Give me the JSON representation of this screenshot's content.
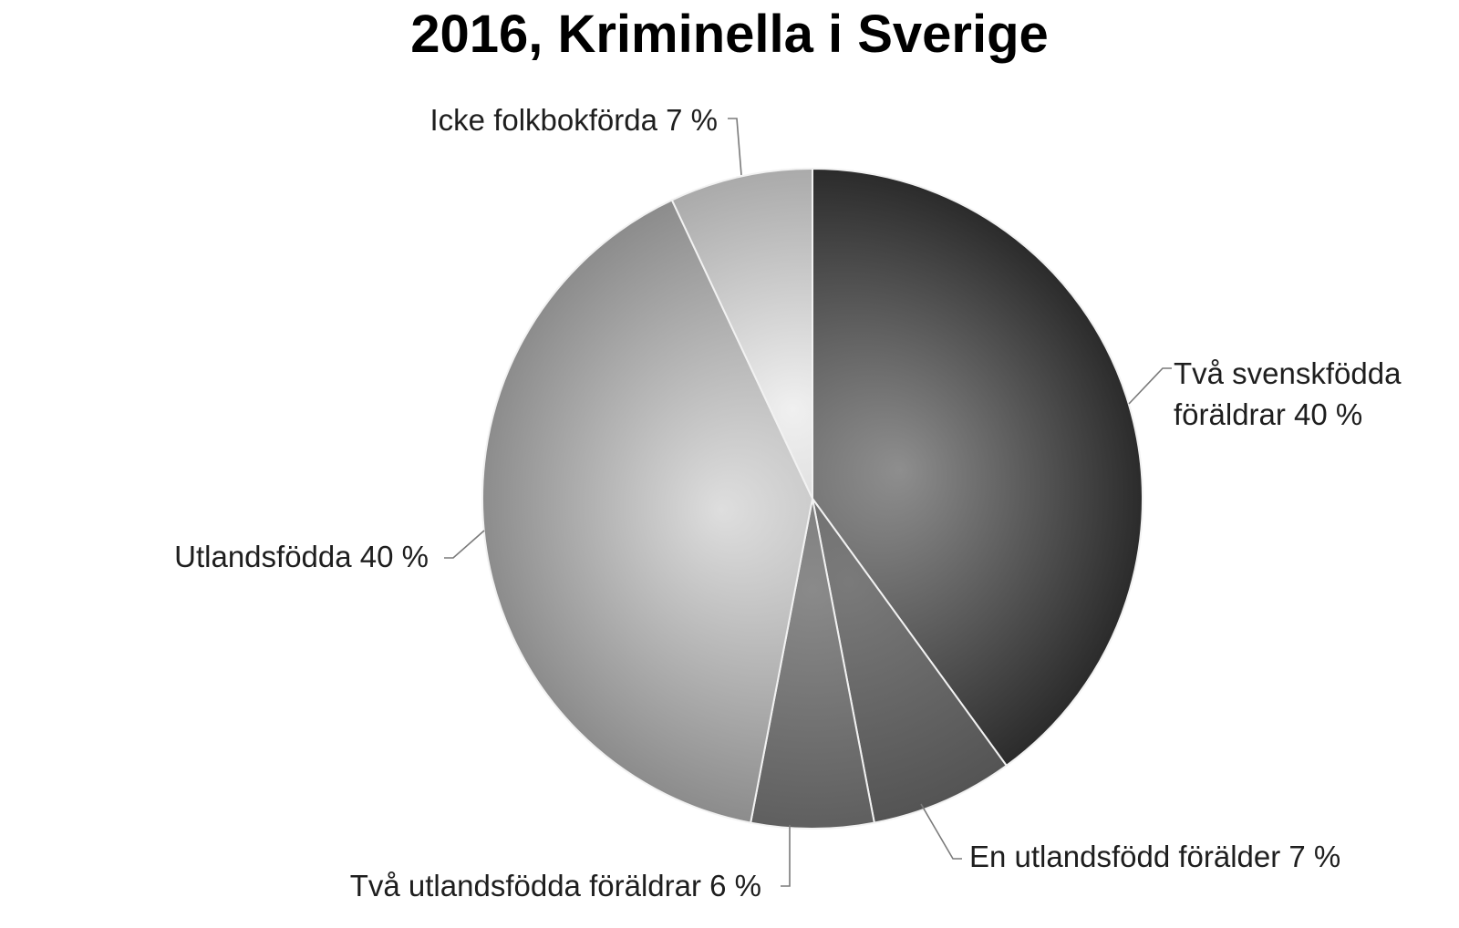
{
  "chart_data": {
    "type": "pie",
    "title": "2016, Kriminella i Sverige",
    "slices": [
      {
        "name": "Två svenskfödda föräldrar",
        "value": 40,
        "label_lines": [
          "Två svenskfödda",
          "föräldrar 40 %"
        ],
        "color_light": "#8e8e8e",
        "color_dark": "#2b2b2b"
      },
      {
        "name": "En utlandsfödd förälder",
        "value": 7,
        "label_lines": [
          "En utlandsfödd förälder 7 %"
        ],
        "color_light": "#7a7a7a",
        "color_dark": "#545454"
      },
      {
        "name": "Två utlandsfödda föräldrar",
        "value": 6,
        "label_lines": [
          "Två utlandsfödda föräldrar 6 %"
        ],
        "color_light": "#8a8a8a",
        "color_dark": "#5f5f5f"
      },
      {
        "name": "Utlandsfödda",
        "value": 40,
        "label_lines": [
          "Utlandsfödda 40 %"
        ],
        "color_light": "#dedede",
        "color_dark": "#8c8c8c"
      },
      {
        "name": "Icke folkbokförda",
        "value": 7,
        "label_lines": [
          "Icke folkbokförda 7 %"
        ],
        "color_light": "#f0f0f0",
        "color_dark": "#aaaaaa"
      }
    ],
    "start": "12 o'clock",
    "direction": "clockwise",
    "legend": "none"
  }
}
